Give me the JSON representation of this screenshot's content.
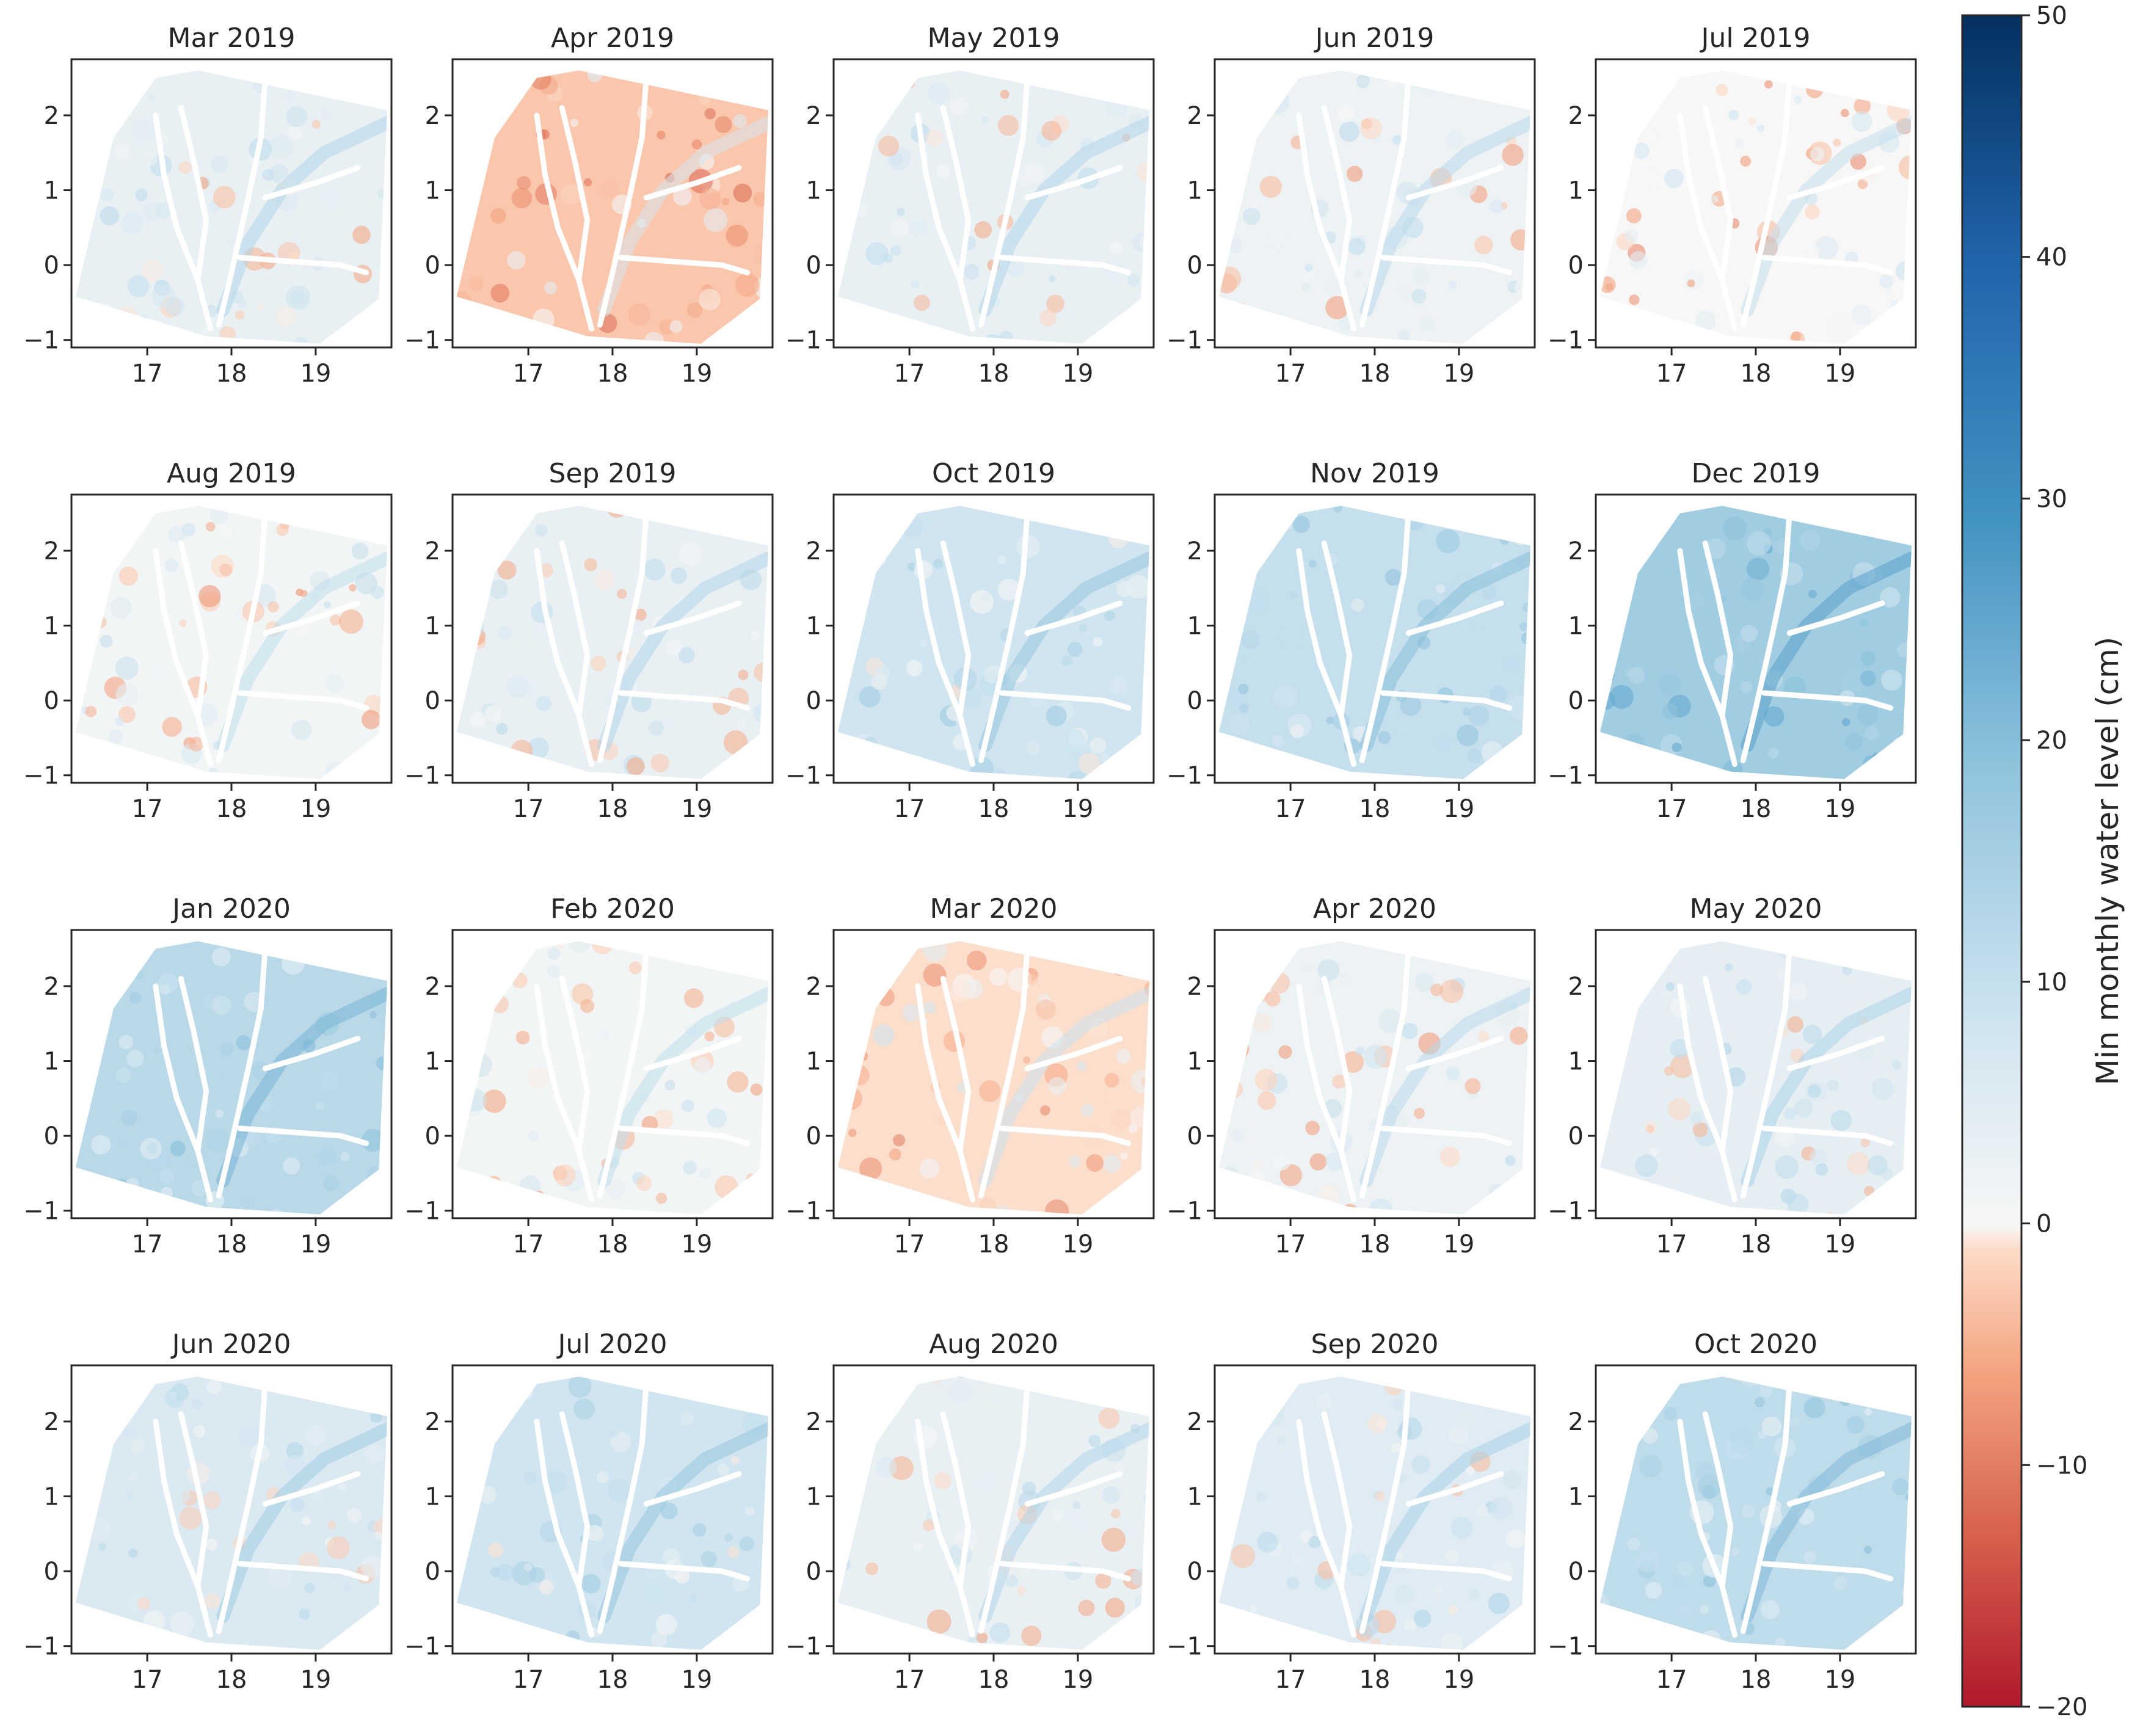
{
  "chart_data": {
    "type": "heatmap",
    "layout": "4x5 small multiples sharing one colorbar",
    "colormap": "RdBu (diverging, red = negative, blue = positive)",
    "x_ticks": [
      17,
      18,
      19
    ],
    "x_tick_labels": [
      "17",
      "18",
      "19"
    ],
    "y_ticks": [
      2,
      1,
      0,
      -1
    ],
    "y_tick_labels": [
      "2",
      "1",
      "0",
      "−1"
    ],
    "xlim": [
      16.1,
      19.9
    ],
    "ylim": [
      -1.1,
      2.75
    ],
    "panels": [
      {
        "title": "Mar 2019",
        "mean_level_cm": 3,
        "pattern": "blue west, light red ridge/north-east"
      },
      {
        "title": "Apr 2019",
        "mean_level_cm": -3,
        "pattern": "red north-east"
      },
      {
        "title": "May 2019",
        "mean_level_cm": 3,
        "pattern": "mostly light blue, faint red"
      },
      {
        "title": "Jun 2019",
        "mean_level_cm": 2,
        "pattern": "light blue, light red streaks"
      },
      {
        "title": "Jul 2019",
        "mean_level_cm": 0,
        "pattern": "mixed light red"
      },
      {
        "title": "Aug 2019",
        "mean_level_cm": 1,
        "pattern": "red south, blue ridge"
      },
      {
        "title": "Sep 2019",
        "mean_level_cm": 3,
        "pattern": "light blue, red south-east"
      },
      {
        "title": "Oct 2019",
        "mean_level_cm": 8,
        "pattern": "light blue throughout"
      },
      {
        "title": "Nov 2019",
        "mean_level_cm": 10,
        "pattern": "blue ridge, red south-east"
      },
      {
        "title": "Dec 2019",
        "mean_level_cm": 16,
        "pattern": "strong blue ridge and tributaries"
      },
      {
        "title": "Jan 2020",
        "mean_level_cm": 12,
        "pattern": "blue ridge and tributaries"
      },
      {
        "title": "Feb 2020",
        "mean_level_cm": 1,
        "pattern": "red east, blue ridge"
      },
      {
        "title": "Mar 2020",
        "mean_level_cm": -1,
        "pattern": "red east, blue ridge"
      },
      {
        "title": "Apr 2020",
        "mean_level_cm": 2,
        "pattern": "mixed, blue ridge"
      },
      {
        "title": "May 2020",
        "mean_level_cm": 4,
        "pattern": "blue ridge, light red east"
      },
      {
        "title": "Jun 2020",
        "mean_level_cm": 6,
        "pattern": "blue ridge, red patches"
      },
      {
        "title": "Jul 2020",
        "mean_level_cm": 8,
        "pattern": "light blue throughout"
      },
      {
        "title": "Aug 2020",
        "mean_level_cm": 3,
        "pattern": "red south-west, blue north-east"
      },
      {
        "title": "Sep 2020",
        "mean_level_cm": 5,
        "pattern": "light blue, red south-east"
      },
      {
        "title": "Oct 2020",
        "mean_level_cm": 11,
        "pattern": "blue throughout"
      }
    ],
    "colorbar": {
      "label": "Min monthly water level (cm)",
      "range": [
        -20,
        50
      ],
      "ticks": [
        50,
        40,
        30,
        20,
        10,
        0,
        -10,
        -20
      ],
      "tick_labels": [
        "50",
        "40",
        "30",
        "20",
        "10",
        "0",
        "−10",
        "−20"
      ]
    }
  }
}
